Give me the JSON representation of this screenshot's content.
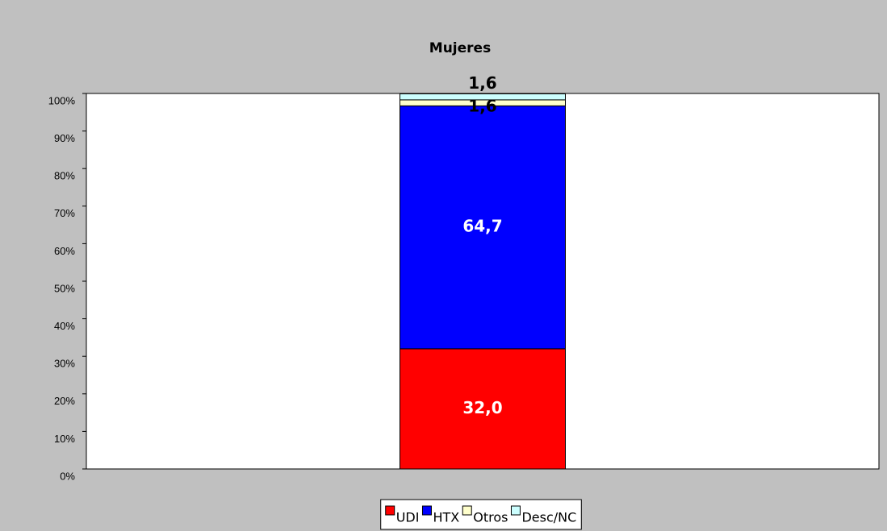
{
  "chart_data": {
    "type": "stacked_bar_percent",
    "title": "Mujeres",
    "categories": [
      null
    ],
    "series": [
      {
        "name": "UDI",
        "color": "#ff0000",
        "values": [
          32.0
        ],
        "value_labels": [
          "32,0"
        ]
      },
      {
        "name": "HTX",
        "color": "#0000ff",
        "values": [
          64.7
        ],
        "value_labels": [
          "64,7"
        ]
      },
      {
        "name": "Otros",
        "color": "#ffffcc",
        "values": [
          1.6
        ],
        "value_labels": [
          "1,6"
        ]
      },
      {
        "name": "Desc/NC",
        "color": "#ccffff",
        "values": [
          1.6
        ],
        "value_labels": [
          "1,6"
        ]
      }
    ],
    "ylim": [
      0,
      100
    ],
    "yticks": [
      {
        "value": 0,
        "label": "0%"
      },
      {
        "value": 10,
        "label": "10%"
      },
      {
        "value": 20,
        "label": "20%"
      },
      {
        "value": 30,
        "label": "30%"
      },
      {
        "value": 40,
        "label": "40%"
      },
      {
        "value": 50,
        "label": "50%"
      },
      {
        "value": 60,
        "label": "60%"
      },
      {
        "value": 70,
        "label": "70%"
      },
      {
        "value": 80,
        "label": "80%"
      },
      {
        "value": 90,
        "label": "90%"
      },
      {
        "value": 100,
        "label": "100%"
      }
    ],
    "legend": "bottom"
  }
}
